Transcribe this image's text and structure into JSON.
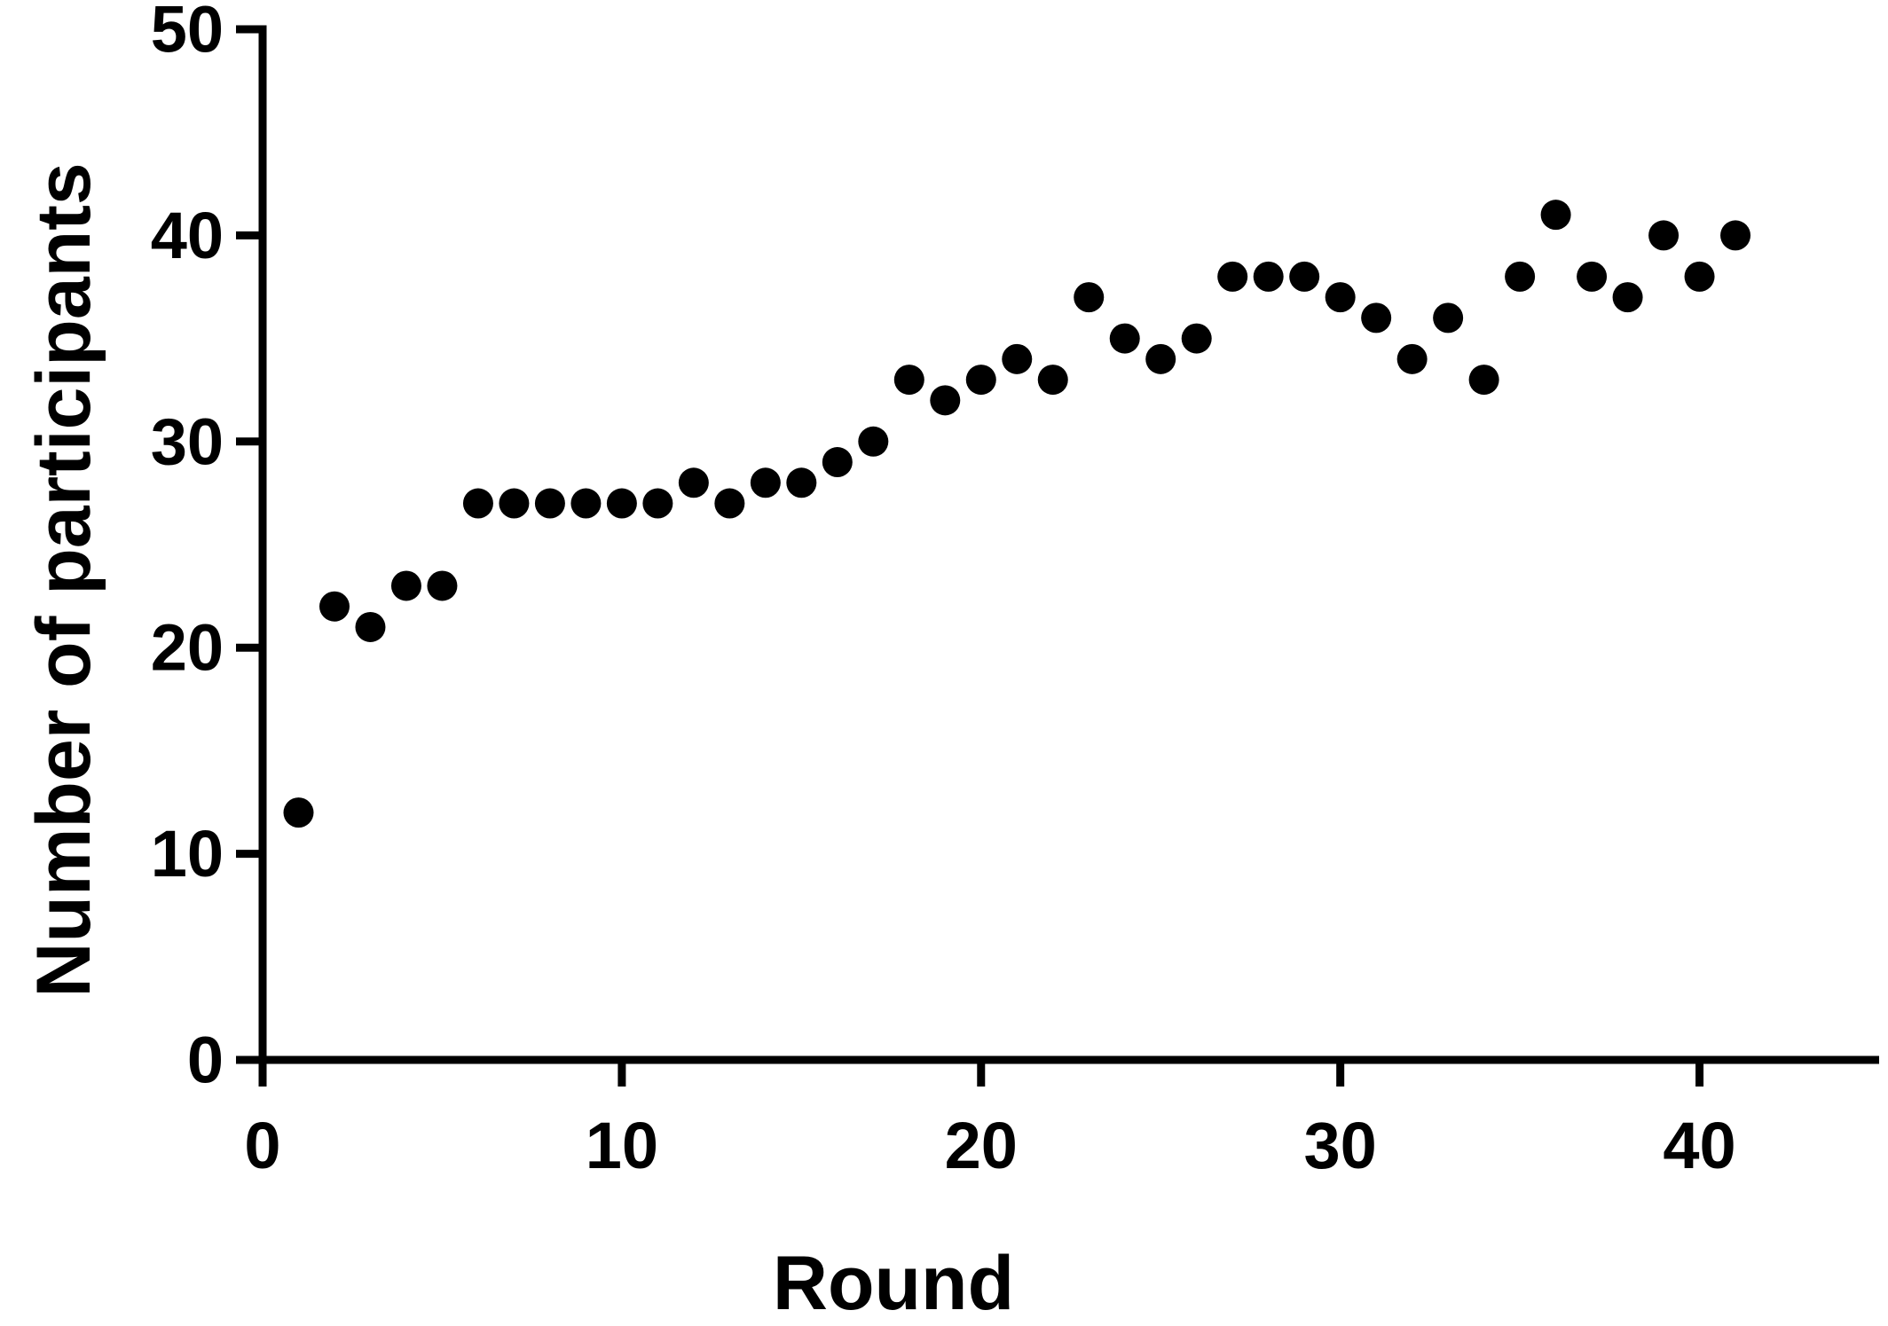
{
  "chart_data": {
    "type": "scatter",
    "title": "",
    "xlabel": "Round",
    "ylabel": "Number of participants",
    "xlim": [
      0,
      45
    ],
    "ylim": [
      0,
      50
    ],
    "x_ticks": [
      0,
      10,
      20,
      30,
      40
    ],
    "y_ticks": [
      0,
      10,
      20,
      30,
      40,
      50
    ],
    "grid": false,
    "legend": "none",
    "series": [
      {
        "x": [
          1,
          2,
          3,
          4,
          5,
          6,
          7,
          8,
          9,
          10,
          11,
          12,
          13,
          14,
          15,
          16,
          17,
          18,
          19,
          20,
          21,
          22,
          23,
          24,
          25,
          26,
          27,
          28,
          29,
          30,
          31,
          32,
          33,
          34,
          35,
          36,
          37,
          38,
          39,
          40,
          41
        ],
        "y": [
          12,
          22,
          21,
          23,
          23,
          27,
          27,
          27,
          27,
          27,
          27,
          28,
          27,
          28,
          28,
          29,
          30,
          33,
          32,
          33,
          34,
          33,
          37,
          35,
          34,
          35,
          38,
          38,
          38,
          37,
          36,
          34,
          36,
          33,
          38,
          41,
          38,
          37,
          40,
          38,
          40
        ]
      }
    ],
    "colors": {
      "marker": "#000000",
      "axis": "#000000",
      "background": "#ffffff"
    }
  }
}
